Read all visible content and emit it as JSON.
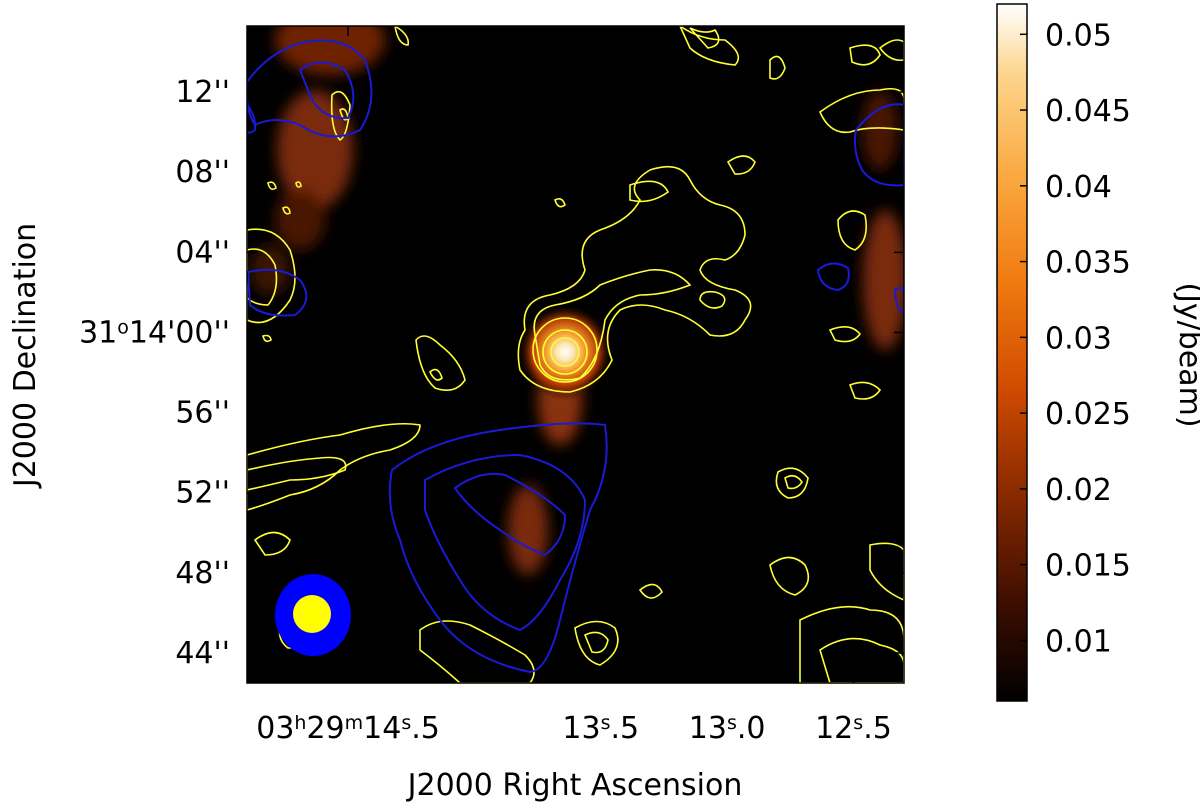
{
  "chart_data": {
    "type": "heatmap",
    "title": "",
    "xlabel": "J2000 Right Ascension",
    "ylabel": "J2000 Declination",
    "x_ticks": [
      {
        "hms": "03h29m14s.5",
        "sec": 14.5,
        "prefix": "03",
        "h": "h",
        "min": "29",
        "m": "m",
        "s_int": "14",
        "s": "s",
        "frac": ".5"
      },
      {
        "hms": "13s.5",
        "sec": 13.5,
        "prefix": "",
        "h": "",
        "min": "",
        "m": "",
        "s_int": "13",
        "s": "s",
        "frac": ".5"
      },
      {
        "hms": "13s.0",
        "sec": 13.0,
        "prefix": "",
        "h": "",
        "min": "",
        "m": "",
        "s_int": "13",
        "s": "s",
        "frac": ".0"
      },
      {
        "hms": "12s.5",
        "sec": 12.5,
        "prefix": "",
        "h": "",
        "min": "",
        "m": "",
        "s_int": "12",
        "s": "s",
        "frac": ".5"
      }
    ],
    "x_range_sec": [
      14.9,
      12.3
    ],
    "y_ticks": [
      {
        "label": "12''",
        "arcsec": 12
      },
      {
        "label": "08''",
        "arcsec": 8
      },
      {
        "label": "04''",
        "arcsec": 4
      },
      {
        "label": "31o14'00''",
        "arcsec": 0,
        "main": "31",
        "deg": "o",
        "rest": "14'00''"
      },
      {
        "label": "56''",
        "arcsec": -4
      },
      {
        "label": "52''",
        "arcsec": -8
      },
      {
        "label": "48''",
        "arcsec": -12
      },
      {
        "label": "44''",
        "arcsec": -16
      }
    ],
    "y_range_arcsec": [
      -17.5,
      15.3
    ],
    "colorbar": {
      "label": "(Jy/beam)",
      "ticks": [
        "0.05",
        "0.045",
        "0.04",
        "0.035",
        "0.03",
        "0.025",
        "0.02",
        "0.015",
        "0.01"
      ],
      "tick_values": [
        0.05,
        0.045,
        0.04,
        0.035,
        0.03,
        0.025,
        0.02,
        0.015,
        0.01
      ],
      "range": [
        0.006,
        0.052
      ],
      "colormap": [
        "#000000",
        "#3d0e00",
        "#8a2a00",
        "#d04c00",
        "#f07a10",
        "#faa840",
        "#fcd58c",
        "#ffffff"
      ]
    },
    "sources": [
      {
        "name": "compact peak",
        "ra_sec": 13.52,
        "dec_arcsec": -1.8,
        "peak_jy_per_beam": 0.05
      }
    ],
    "contours": {
      "yellow": "#ffff33",
      "blue": "#1a1ad6"
    },
    "beams": {
      "large": "#0000ff",
      "small": "#ffff00"
    }
  }
}
